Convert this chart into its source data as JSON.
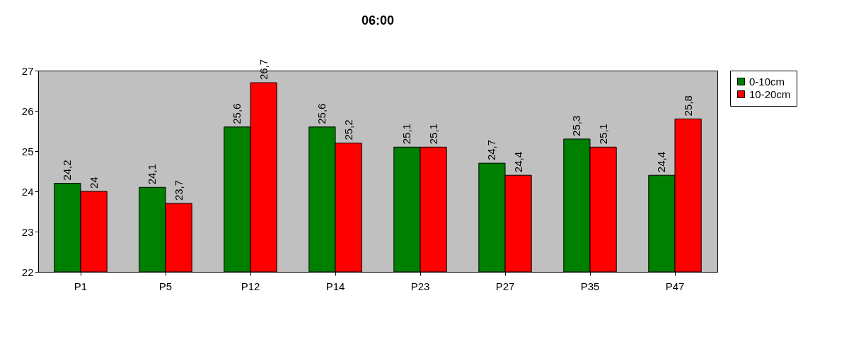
{
  "chart_data": {
    "type": "bar",
    "title": "06:00",
    "categories": [
      "P1",
      "P5",
      "P12",
      "P14",
      "P23",
      "P27",
      "P35",
      "P47"
    ],
    "series": [
      {
        "name": "0-10cm",
        "color": "#008000",
        "values": [
          24.2,
          24.1,
          25.6,
          25.6,
          25.1,
          24.7,
          25.3,
          24.4
        ],
        "value_labels": [
          "24,2",
          "24,1",
          "25,6",
          "25,6",
          "25,1",
          "24,7",
          "25,3",
          "24,4"
        ]
      },
      {
        "name": "10-20cm",
        "color": "#ff0000",
        "values": [
          24.0,
          23.7,
          26.7,
          25.2,
          25.1,
          24.4,
          25.1,
          25.8
        ],
        "value_labels": [
          "24",
          "23,7",
          "26,7",
          "25,2",
          "25,1",
          "24,4",
          "25,1",
          "25,8"
        ]
      }
    ],
    "ylim": [
      22,
      27
    ],
    "yticks": [
      22,
      23,
      24,
      25,
      26,
      27
    ],
    "grid": false,
    "legend": "right"
  }
}
